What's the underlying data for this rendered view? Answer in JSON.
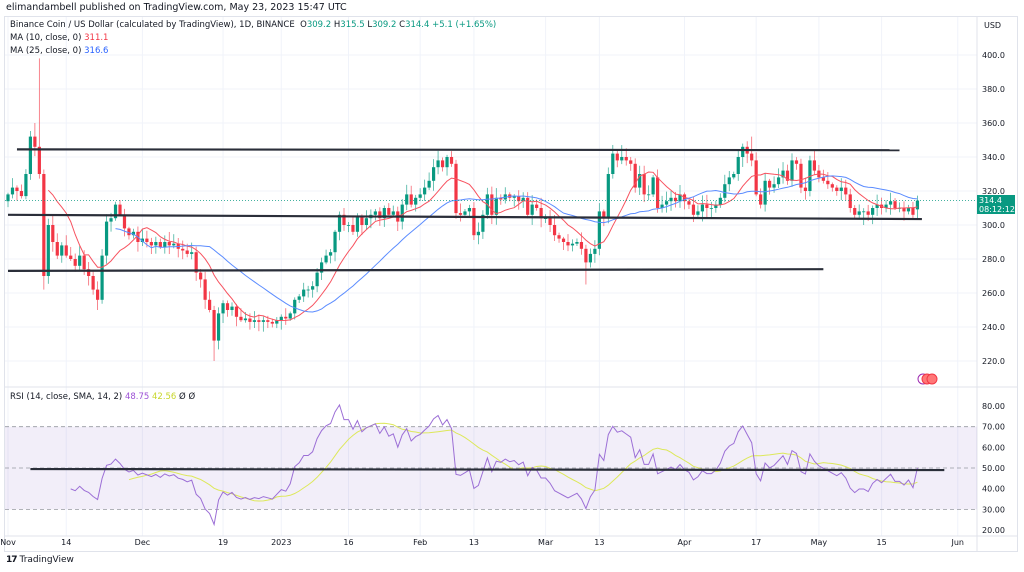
{
  "header": {
    "published": "elimandambell published on TradingView.com, May 23, 2023 15:47 UTC",
    "symbol": "Binance Coin / US Dollar (calculated by TradingView), 1D, BINANCE",
    "o_label": "O",
    "o": "309.2",
    "h_label": "H",
    "h": "315.5",
    "l_label": "L",
    "l": "309.2",
    "c_label": "C",
    "c": "314.4",
    "change": "+5.1 (+1.65%)",
    "ma10_label": "MA (10, close, 0)",
    "ma10": "311.1",
    "ma25_label": "MA (25, close, 0)",
    "ma25": "316.6",
    "rsi_label": "RSI (14, close, SMA, 14, 2)",
    "rsi": "48.75",
    "rsi_sma": "42.56",
    "rsi_extra": "Ø Ø"
  },
  "price_axis": {
    "currency": "USD",
    "last_price": "314.4",
    "countdown": "08:12:12"
  },
  "footer": {
    "brand": "TradingView",
    "logo": "TV"
  },
  "colors": {
    "up": "#089981",
    "down": "#f23645",
    "ma10": "#f7525f",
    "ma25": "#5b8cff",
    "rsi": "#9c6fd6",
    "rsi_sma": "#dde85a",
    "band": "#7e57c2",
    "drawing": "#2a2e39"
  },
  "icons": [
    "tradingview-logo-icon",
    "flag-event-icon"
  ],
  "chart_data": [
    {
      "type": "candlestick",
      "title": "Binance Coin / US Dollar, 1D",
      "start_date": "2022-11-01",
      "end_date": "2023-05-23",
      "closes": [
        318,
        322,
        320,
        317,
        330,
        352,
        346,
        330,
        270,
        300,
        290,
        282,
        288,
        282,
        280,
        276,
        282,
        274,
        270,
        262,
        256,
        282,
        302,
        304,
        312,
        306,
        298,
        294,
        296,
        290,
        292,
        290,
        288,
        290,
        287,
        290,
        288,
        289,
        286,
        285,
        283,
        284,
        272,
        268,
        256,
        250,
        232,
        248,
        254,
        250,
        252,
        246,
        244,
        245,
        243,
        244,
        243,
        244,
        243,
        242,
        244,
        246,
        245,
        248,
        256,
        258,
        262,
        262,
        264,
        272,
        278,
        282,
        284,
        296,
        306,
        300,
        300,
        296,
        305,
        300,
        304,
        306,
        308,
        304,
        310,
        306,
        308,
        302,
        312,
        318,
        312,
        316,
        318,
        322,
        326,
        334,
        338,
        334,
        340,
        336,
        307,
        306,
        308,
        310,
        294,
        296,
        306,
        318,
        306,
        316,
        315,
        318,
        316,
        317,
        314,
        316,
        306,
        312,
        310,
        304,
        304,
        300,
        294,
        292,
        290,
        288,
        289,
        290,
        286,
        278,
        283,
        286,
        308,
        304,
        330,
        342,
        338,
        340,
        338,
        336,
        322,
        330,
        318,
        318,
        328,
        310,
        312,
        314,
        316,
        314,
        318,
        314,
        312,
        306,
        308,
        312,
        310,
        310,
        312,
        316,
        324,
        328,
        330,
        340,
        346,
        342,
        338,
        318,
        312,
        326,
        322,
        324,
        328,
        332,
        326,
        338,
        336,
        322,
        320,
        338,
        332,
        328,
        326,
        324,
        322,
        320,
        322,
        318,
        310,
        306,
        308,
        308,
        306,
        310,
        312,
        310,
        312,
        314,
        310,
        310,
        308,
        310,
        306,
        314.4
      ],
      "first_open": 314,
      "last_open": 309.2,
      "notable_highs": {
        "2022-11-07": 360,
        "2022-11-08": 398,
        "2023-04-16": 352,
        "2023-03-18": 347
      },
      "notable_lows": {
        "2022-11-09": 262,
        "2022-12-17": 220,
        "2023-03-10": 265,
        "2023-05-11": 300
      },
      "moving_averages": [
        {
          "name": "MA 10",
          "period": 10
        },
        {
          "name": "MA 25",
          "period": 25
        }
      ],
      "ylim": [
        210,
        410
      ],
      "y_ticks": [
        "400.0",
        "380.0",
        "360.0",
        "340.0",
        "320.0",
        "300.0",
        "280.0",
        "260.0",
        "240.0",
        "220.0"
      ],
      "y_tick_values": [
        400,
        380,
        360,
        340,
        320,
        300,
        280,
        260,
        240,
        220
      ],
      "x_ticks": [
        {
          "label": "Nov",
          "date": "2022-11-01"
        },
        {
          "label": "14",
          "date": "2022-11-14"
        },
        {
          "label": "Dec",
          "date": "2022-12-01"
        },
        {
          "label": "19",
          "date": "2022-12-19"
        },
        {
          "label": "2023",
          "date": "2023-01-01"
        },
        {
          "label": "16",
          "date": "2023-01-16"
        },
        {
          "label": "Feb",
          "date": "2023-02-01"
        },
        {
          "label": "13",
          "date": "2023-02-13"
        },
        {
          "label": "Mar",
          "date": "2023-03-01"
        },
        {
          "label": "13",
          "date": "2023-03-13"
        },
        {
          "label": "Apr",
          "date": "2023-04-01"
        },
        {
          "label": "17",
          "date": "2023-04-17"
        },
        {
          "label": "May",
          "date": "2023-05-01"
        },
        {
          "label": "15",
          "date": "2023-05-15"
        },
        {
          "label": "Jun",
          "date": "2023-06-01"
        }
      ],
      "drawings": [
        {
          "name": "resistance",
          "from": [
            "2022-11-03",
            344.5
          ],
          "to": [
            "2023-05-19",
            344
          ]
        },
        {
          "name": "support",
          "from": [
            "2022-11-01",
            306
          ],
          "to": [
            "2023-05-24",
            303.5
          ]
        },
        {
          "name": "lower-support",
          "from": [
            "2022-11-01",
            273
          ],
          "to": [
            "2023-05-02",
            274
          ]
        }
      ]
    },
    {
      "type": "line",
      "title": "RSI (14, close, SMA, 14, 2)",
      "series": [
        {
          "name": "RSI",
          "period": 14,
          "last": 48.75
        },
        {
          "name": "RSI SMA",
          "period": 14,
          "last": 42.56
        }
      ],
      "ylim": [
        20,
        80
      ],
      "band": [
        30,
        70
      ],
      "y_ticks": [
        "80.00",
        "70.00",
        "60.00",
        "50.00",
        "40.00",
        "30.00",
        "20.00"
      ],
      "y_tick_values": [
        80,
        70,
        60,
        50,
        40,
        30,
        20
      ],
      "drawings": [
        {
          "name": "rsi-midline",
          "from": [
            "2022-11-06",
            49.5
          ],
          "to": [
            "2023-05-29",
            49
          ]
        }
      ]
    }
  ]
}
